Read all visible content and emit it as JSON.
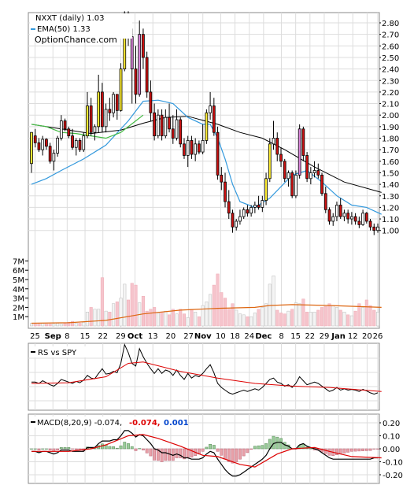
{
  "chart_data": [
    {
      "type": "candlestick",
      "legend": {
        "price_label": "NXXT (daily) 1.03",
        "ema_label": "EMA(50) 1.33",
        "watermark": "OptionChance.com"
      },
      "ylim": [
        0.95,
        2.95
      ],
      "y_ticks": [
        "2.80",
        "2.70",
        "2.60",
        "2.50",
        "2.40",
        "2.30",
        "2.20",
        "2.10",
        "2.00",
        "1.90",
        "1.80",
        "1.70",
        "1.60",
        "1.50",
        "1.40",
        "1.30",
        "1.20",
        "1.10",
        "1.00"
      ],
      "x_tick_labels": [
        "25",
        "Sep",
        "8",
        "15",
        "22",
        "29",
        "Oct",
        "13",
        "20",
        "27",
        "Nov",
        "10",
        "18",
        "24",
        "Dec",
        "8",
        "15",
        "22",
        "29",
        "Jan",
        "12",
        "20",
        "26"
      ],
      "x_tick_bold": [
        "Sep",
        "Oct",
        "Nov",
        "Dec",
        "Jan"
      ],
      "bars": [
        [
          1.58,
          1.85,
          1.5,
          1.85
        ],
        [
          1.82,
          1.88,
          1.72,
          1.76
        ],
        [
          1.76,
          1.8,
          1.68,
          1.7
        ],
        [
          1.7,
          1.82,
          1.65,
          1.79
        ],
        [
          1.79,
          1.8,
          1.7,
          1.73
        ],
        [
          1.73,
          1.76,
          1.58,
          1.6
        ],
        [
          1.6,
          1.7,
          1.52,
          1.67
        ],
        [
          1.67,
          1.82,
          1.64,
          1.8
        ],
        [
          1.8,
          2.0,
          1.78,
          1.95
        ],
        [
          1.95,
          1.97,
          1.86,
          1.88
        ],
        [
          1.88,
          1.9,
          1.8,
          1.82
        ],
        [
          1.82,
          1.88,
          1.7,
          1.72
        ],
        [
          1.72,
          1.8,
          1.65,
          1.78
        ],
        [
          1.78,
          1.8,
          1.68,
          1.7
        ],
        [
          1.7,
          1.85,
          1.68,
          1.82
        ],
        [
          1.82,
          2.2,
          1.8,
          2.08
        ],
        [
          2.08,
          2.15,
          1.82,
          1.85
        ],
        [
          1.85,
          1.92,
          1.78,
          1.9
        ],
        [
          1.9,
          2.35,
          1.85,
          2.2
        ],
        [
          2.2,
          2.28,
          1.85,
          1.9
        ],
        [
          1.9,
          2.1,
          1.85,
          2.05
        ],
        [
          2.05,
          2.15,
          1.95,
          2.02
        ],
        [
          2.02,
          2.2,
          1.98,
          2.18
        ],
        [
          2.18,
          2.15,
          1.96,
          2.04
        ],
        [
          2.04,
          2.45,
          2.03,
          2.4
        ],
        [
          2.4,
          2.9,
          2.38,
          2.88
        ],
        [
          2.88,
          2.9,
          2.6,
          2.68
        ],
        [
          2.68,
          2.75,
          2.1,
          2.4
        ],
        [
          2.4,
          2.6,
          2.1,
          2.18
        ],
        [
          2.18,
          2.82,
          2.16,
          2.7
        ],
        [
          2.7,
          2.75,
          2.4,
          2.5
        ],
        [
          2.5,
          2.55,
          2.15,
          2.2
        ],
        [
          2.2,
          2.3,
          1.95,
          2.02
        ],
        [
          2.02,
          2.1,
          1.78,
          1.82
        ],
        [
          1.82,
          2.05,
          1.8,
          2.0
        ],
        [
          2.0,
          2.05,
          1.78,
          1.82
        ],
        [
          1.82,
          2.05,
          1.8,
          1.98
        ],
        [
          1.98,
          2.1,
          1.85,
          1.88
        ],
        [
          1.88,
          2.0,
          1.75,
          1.8
        ],
        [
          1.8,
          2.05,
          1.78,
          1.96
        ],
        [
          1.96,
          1.98,
          1.72,
          1.75
        ],
        [
          1.75,
          1.8,
          1.62,
          1.65
        ],
        [
          1.65,
          1.82,
          1.55,
          1.78
        ],
        [
          1.78,
          1.82,
          1.62,
          1.66
        ],
        [
          1.66,
          1.8,
          1.6,
          1.75
        ],
        [
          1.75,
          1.78,
          1.66,
          1.68
        ],
        [
          1.68,
          1.92,
          1.66,
          1.78
        ],
        [
          1.78,
          2.05,
          1.75,
          2.02
        ],
        [
          2.02,
          2.2,
          1.96,
          2.08
        ],
        [
          2.08,
          2.15,
          1.82,
          1.85
        ],
        [
          1.85,
          1.9,
          1.44,
          1.48
        ],
        [
          1.48,
          1.55,
          1.35,
          1.42
        ],
        [
          1.42,
          1.5,
          1.2,
          1.25
        ],
        [
          1.25,
          1.35,
          1.1,
          1.15
        ],
        [
          1.15,
          1.18,
          0.98,
          1.03
        ],
        [
          1.03,
          1.1,
          1.0,
          1.08
        ],
        [
          1.08,
          1.18,
          1.05,
          1.12
        ],
        [
          1.12,
          1.2,
          1.1,
          1.18
        ],
        [
          1.18,
          1.22,
          1.12,
          1.15
        ],
        [
          1.15,
          1.22,
          1.12,
          1.2
        ],
        [
          1.2,
          1.25,
          1.15,
          1.22
        ],
        [
          1.22,
          1.3,
          1.18,
          1.2
        ],
        [
          1.2,
          1.3,
          1.16,
          1.26
        ],
        [
          1.26,
          1.5,
          1.22,
          1.45
        ],
        [
          1.45,
          1.8,
          1.42,
          1.75
        ],
        [
          1.75,
          1.95,
          1.7,
          1.8
        ],
        [
          1.8,
          1.85,
          1.6,
          1.66
        ],
        [
          1.66,
          1.72,
          1.55,
          1.6
        ],
        [
          1.6,
          1.62,
          1.42,
          1.45
        ],
        [
          1.45,
          1.52,
          1.38,
          1.5
        ],
        [
          1.5,
          1.52,
          1.28,
          1.3
        ],
        [
          1.3,
          1.52,
          1.28,
          1.48
        ],
        [
          1.48,
          1.92,
          1.45,
          1.88
        ],
        [
          1.88,
          1.9,
          1.6,
          1.65
        ],
        [
          1.65,
          1.68,
          1.42,
          1.45
        ],
        [
          1.45,
          1.55,
          1.4,
          1.5
        ],
        [
          1.5,
          1.6,
          1.46,
          1.52
        ],
        [
          1.52,
          1.58,
          1.45,
          1.48
        ],
        [
          1.48,
          1.5,
          1.3,
          1.32
        ],
        [
          1.32,
          1.38,
          1.15,
          1.18
        ],
        [
          1.18,
          1.2,
          1.05,
          1.08
        ],
        [
          1.08,
          1.15,
          1.04,
          1.12
        ],
        [
          1.12,
          1.25,
          1.08,
          1.22
        ],
        [
          1.22,
          1.28,
          1.1,
          1.12
        ],
        [
          1.12,
          1.18,
          1.08,
          1.15
        ],
        [
          1.15,
          1.18,
          1.06,
          1.1
        ],
        [
          1.1,
          1.16,
          1.05,
          1.12
        ],
        [
          1.12,
          1.15,
          1.05,
          1.08
        ],
        [
          1.08,
          1.12,
          1.02,
          1.05
        ],
        [
          1.05,
          1.18,
          1.04,
          1.15
        ],
        [
          1.15,
          1.16,
          1.06,
          1.08
        ],
        [
          1.08,
          1.1,
          1.0,
          1.03
        ],
        [
          1.03,
          1.06,
          0.96,
          1.0
        ],
        [
          1.0,
          1.06,
          0.98,
          1.03
        ]
      ],
      "ema": {
        "name": "EMA(50)",
        "x": [
          0,
          8,
          16,
          24,
          30,
          36,
          42,
          50,
          56,
          62,
          68,
          76,
          84,
          94
        ],
        "y": [
          1.92,
          1.88,
          1.84,
          1.87,
          1.93,
          1.98,
          1.99,
          1.92,
          1.85,
          1.8,
          1.7,
          1.55,
          1.42,
          1.33
        ]
      },
      "ma_blue": {
        "x": [
          0,
          4,
          8,
          14,
          20,
          26,
          30,
          34,
          38,
          42,
          46,
          48,
          50,
          52,
          54,
          56,
          60,
          64,
          70,
          74,
          78,
          82,
          86,
          90,
          94
        ],
        "y": [
          1.4,
          1.45,
          1.52,
          1.62,
          1.74,
          1.95,
          2.12,
          2.13,
          2.1,
          1.98,
          1.92,
          1.92,
          1.8,
          1.62,
          1.4,
          1.25,
          1.2,
          1.28,
          1.48,
          1.52,
          1.42,
          1.3,
          1.22,
          1.2,
          1.14
        ]
      },
      "ma_green": {
        "x": [
          0,
          4,
          8,
          12,
          16,
          20,
          24,
          28,
          30
        ],
        "y": [
          1.92,
          1.9,
          1.85,
          1.84,
          1.82,
          1.8,
          1.85,
          1.95,
          2.0
        ]
      }
    },
    {
      "type": "bar",
      "name": "volume",
      "y_ticks": [
        "7M",
        "6M",
        "5M",
        "4M",
        "3M",
        "2M",
        "1M"
      ],
      "ylim": [
        0,
        7.6
      ],
      "values": [
        0.3,
        0.2,
        0.2,
        0.3,
        0.2,
        0.2,
        0.2,
        0.3,
        0.2,
        0.3,
        0.4,
        0.5,
        0.3,
        0.3,
        0.4,
        1.5,
        2.0,
        1.8,
        1.8,
        5.2,
        1.6,
        1.5,
        2.4,
        2.6,
        3.0,
        4.5,
        2.8,
        4.6,
        4.4,
        2.5,
        3.2,
        1.6,
        1.8,
        2.0,
        1.4,
        1.5,
        1.6,
        1.2,
        1.8,
        1.3,
        1.8,
        1.3,
        0.9,
        1.8,
        1.5,
        1.0,
        2.2,
        2.6,
        3.4,
        4.4,
        5.6,
        3.6,
        3.0,
        1.8,
        2.4,
        1.7,
        1.3,
        1.2,
        1.0,
        1.0,
        1.4,
        1.8,
        2.0,
        2.4,
        4.5,
        5.4,
        1.7,
        1.4,
        1.3,
        1.6,
        1.8,
        2.5,
        2.4,
        2.9,
        1.5,
        1.5,
        1.5,
        1.7,
        2.0,
        2.1,
        2.4,
        2.2,
        2.0,
        1.7,
        1.5,
        1.2,
        1.1,
        1.6,
        2.4,
        2.0,
        2.8,
        2.2,
        1.7,
        1.5
      ],
      "avg_line": {
        "x": [
          0,
          10,
          20,
          30,
          40,
          50,
          60,
          64,
          70,
          80,
          94
        ],
        "y": [
          0.3,
          0.35,
          0.6,
          1.3,
          1.7,
          1.9,
          2.0,
          2.2,
          2.3,
          2.2,
          2.0
        ]
      }
    },
    {
      "type": "line",
      "name": "RS vs SPY",
      "legend": "RS vs SPY",
      "rs": [
        0.42,
        0.42,
        0.4,
        0.44,
        0.41,
        0.38,
        0.36,
        0.4,
        0.46,
        0.44,
        0.42,
        0.4,
        0.43,
        0.41,
        0.45,
        0.52,
        0.48,
        0.47,
        0.55,
        0.62,
        0.54,
        0.55,
        0.58,
        0.56,
        0.7,
        0.98,
        0.86,
        0.7,
        0.66,
        0.92,
        0.8,
        0.7,
        0.62,
        0.55,
        0.62,
        0.55,
        0.6,
        0.58,
        0.52,
        0.6,
        0.52,
        0.46,
        0.55,
        0.48,
        0.52,
        0.5,
        0.55,
        0.62,
        0.68,
        0.56,
        0.4,
        0.34,
        0.3,
        0.26,
        0.24,
        0.26,
        0.28,
        0.3,
        0.28,
        0.3,
        0.32,
        0.3,
        0.34,
        0.4,
        0.46,
        0.48,
        0.42,
        0.4,
        0.36,
        0.38,
        0.34,
        0.4,
        0.5,
        0.44,
        0.38,
        0.4,
        0.42,
        0.4,
        0.36,
        0.32,
        0.28,
        0.3,
        0.34,
        0.3,
        0.32,
        0.3,
        0.31,
        0.3,
        0.28,
        0.31,
        0.29,
        0.26,
        0.24,
        0.26
      ],
      "rs_avg": {
        "x": [
          0,
          10,
          20,
          26,
          30,
          40,
          50,
          60,
          70,
          80,
          94
        ],
        "y": [
          0.4,
          0.41,
          0.5,
          0.7,
          0.72,
          0.58,
          0.48,
          0.4,
          0.36,
          0.34,
          0.28
        ]
      }
    },
    {
      "type": "bar",
      "name": "MACD",
      "legend": {
        "label": "MACD(8,20,9) -0.074,",
        "macd": "-0.074,",
        "signal": "0.001"
      },
      "y_ticks": [
        "0.20",
        "0.10",
        "0.00",
        "-0.10",
        "-0.20"
      ],
      "ylim": [
        -0.25,
        0.25
      ],
      "macd": [
        -0.02,
        -0.02,
        -0.03,
        -0.02,
        -0.02,
        -0.03,
        -0.04,
        -0.03,
        -0.01,
        -0.01,
        -0.01,
        -0.02,
        -0.02,
        -0.02,
        -0.02,
        0.01,
        0.01,
        0.01,
        0.04,
        0.06,
        0.06,
        0.06,
        0.07,
        0.07,
        0.1,
        0.14,
        0.14,
        0.12,
        0.09,
        0.11,
        0.1,
        0.07,
        0.04,
        0.0,
        -0.01,
        -0.03,
        -0.03,
        -0.04,
        -0.05,
        -0.04,
        -0.05,
        -0.07,
        -0.07,
        -0.08,
        -0.08,
        -0.08,
        -0.07,
        -0.04,
        -0.02,
        -0.03,
        -0.08,
        -0.12,
        -0.16,
        -0.19,
        -0.21,
        -0.21,
        -0.2,
        -0.18,
        -0.16,
        -0.14,
        -0.12,
        -0.1,
        -0.08,
        -0.05,
        0.0,
        0.04,
        0.05,
        0.05,
        0.03,
        0.02,
        0.0,
        0.0,
        0.03,
        0.04,
        0.02,
        0.01,
        0.0,
        -0.01,
        -0.03,
        -0.05,
        -0.07,
        -0.08,
        -0.08,
        -0.08,
        -0.08,
        -0.08,
        -0.08,
        -0.08,
        -0.08,
        -0.08,
        -0.08,
        -0.08,
        -0.07,
        -0.07
      ],
      "signal": {
        "x": [
          0,
          10,
          16,
          20,
          26,
          30,
          34,
          40,
          46,
          50,
          56,
          60,
          66,
          70,
          76,
          80,
          86,
          94
        ],
        "y": [
          -0.02,
          -0.02,
          0.0,
          0.03,
          0.1,
          0.11,
          0.08,
          0.02,
          -0.05,
          -0.06,
          -0.12,
          -0.14,
          -0.04,
          0.0,
          0.01,
          -0.02,
          -0.06,
          -0.07
        ]
      },
      "hist_pos_color": "#99cc99",
      "hist_neg_color": "#e8a0a8"
    }
  ]
}
